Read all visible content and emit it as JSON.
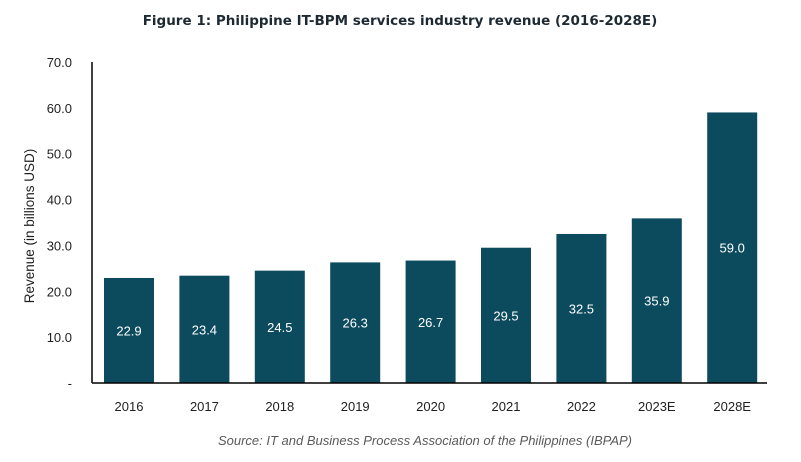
{
  "chart_data": {
    "type": "bar",
    "title": "Figure 1: Philippine IT-BPM services industry revenue (2016-2028E)",
    "xlabel": "",
    "ylabel": "Revenue (in billions USD)",
    "categories": [
      "2016",
      "2017",
      "2018",
      "2019",
      "2020",
      "2021",
      "2022",
      "2023E",
      "2028E"
    ],
    "values": [
      22.9,
      23.4,
      24.5,
      26.3,
      26.7,
      29.5,
      32.5,
      35.9,
      59.0
    ],
    "data_labels": [
      "22.9",
      "23.4",
      "24.5",
      "26.3",
      "26.7",
      "29.5",
      "32.5",
      "35.9",
      "59.0"
    ],
    "ylim": [
      0,
      70
    ],
    "yticks": [
      0,
      10,
      20,
      30,
      40,
      50,
      60,
      70
    ],
    "ytick_labels": [
      "-",
      "10.0",
      "20.0",
      "30.0",
      "40.0",
      "50.0",
      "60.0",
      "70.0"
    ],
    "grid": false,
    "legend": "none",
    "bar_color": "#0c4a5e",
    "label_color": "#ffffff",
    "source": "Source: IT and Business Process Association of the Philippines (IBPAP)"
  }
}
